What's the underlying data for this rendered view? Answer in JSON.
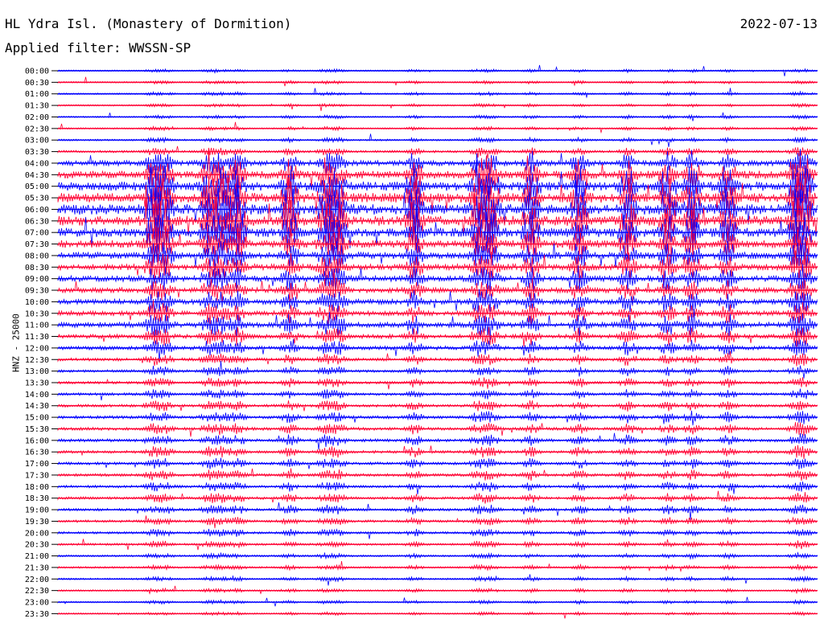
{
  "header": {
    "station": "HL Ydra Isl. (Monastery of Dormition)",
    "filter": "Applied filter: WWSSN-SP",
    "date": "2022-07-13"
  },
  "chart_data": {
    "type": "line",
    "ylabel": "HNZ - 25000",
    "row_labels": [
      "00:00",
      "00:30",
      "01:00",
      "01:30",
      "02:00",
      "02:30",
      "03:00",
      "03:30",
      "04:00",
      "04:30",
      "05:00",
      "05:30",
      "06:00",
      "06:30",
      "07:00",
      "07:30",
      "08:00",
      "08:30",
      "09:00",
      "09:30",
      "10:00",
      "10:30",
      "11:00",
      "11:30",
      "12:00",
      "12:30",
      "13:00",
      "13:30",
      "14:00",
      "14:30",
      "15:00",
      "15:30",
      "16:00",
      "16:30",
      "17:00",
      "17:30",
      "18:00",
      "18:30",
      "19:00",
      "19:30",
      "20:00",
      "20:30",
      "21:00",
      "21:30",
      "22:00",
      "22:30",
      "23:00",
      "23:30"
    ],
    "series_colors": [
      "#0000ff",
      "#ff0033"
    ],
    "activity_by_row": [
      0.05,
      0.05,
      0.06,
      0.05,
      0.06,
      0.06,
      0.08,
      0.15,
      0.45,
      0.7,
      0.85,
      0.9,
      1.0,
      0.95,
      0.85,
      0.7,
      0.6,
      0.55,
      0.5,
      0.45,
      0.45,
      0.4,
      0.45,
      0.35,
      0.3,
      0.22,
      0.18,
      0.18,
      0.18,
      0.2,
      0.22,
      0.22,
      0.22,
      0.2,
      0.2,
      0.2,
      0.18,
      0.18,
      0.18,
      0.16,
      0.14,
      0.12,
      0.1,
      0.09,
      0.08,
      0.07,
      0.06,
      0.05
    ]
  }
}
